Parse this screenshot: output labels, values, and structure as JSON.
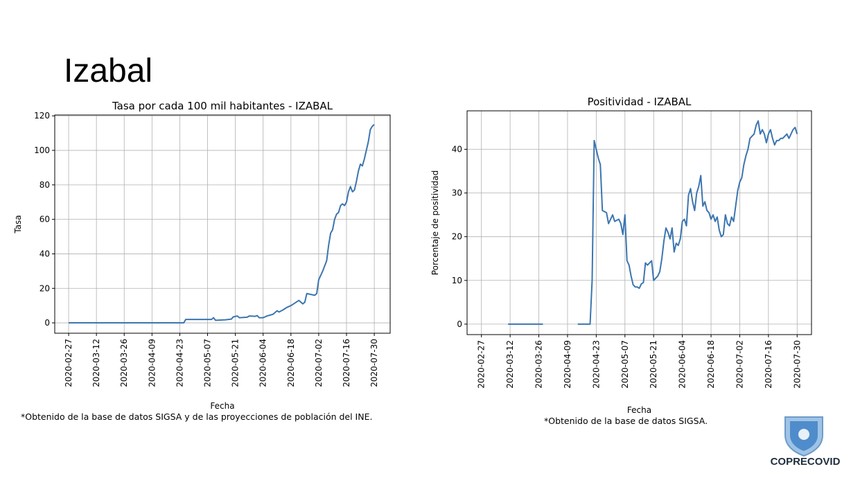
{
  "title": "Izabal",
  "logo_text": "COPRECOVID",
  "chart_data": [
    {
      "type": "line",
      "title": "Tasa por cada 100 mil habitantes - IZABAL",
      "xlabel": "Fecha",
      "ylabel": "Tasa",
      "note": "*Obtenido de la base de datos SIGSA y de las proyecciones de población del INE.",
      "color": "#3b75af",
      "grid": true,
      "xlim": [
        "2020-02-20",
        "2020-08-07"
      ],
      "ylim": [
        -6,
        120.5
      ],
      "xticks": [
        "2020-02-27",
        "2020-03-12",
        "2020-03-26",
        "2020-04-09",
        "2020-04-23",
        "2020-05-07",
        "2020-05-21",
        "2020-06-04",
        "2020-06-18",
        "2020-07-02",
        "2020-07-16",
        "2020-07-30"
      ],
      "yticks": [
        0,
        20,
        40,
        60,
        80,
        100,
        120
      ],
      "x": [
        "2020-02-27",
        "2020-04-25",
        "2020-04-26",
        "2020-05-09",
        "2020-05-10",
        "2020-05-11",
        "2020-05-16",
        "2020-05-19",
        "2020-05-20",
        "2020-05-22",
        "2020-05-23",
        "2020-05-27",
        "2020-05-28",
        "2020-05-31",
        "2020-06-01",
        "2020-06-02",
        "2020-06-04",
        "2020-06-06",
        "2020-06-09",
        "2020-06-11",
        "2020-06-12",
        "2020-06-14",
        "2020-06-16",
        "2020-06-18",
        "2020-06-20",
        "2020-06-22",
        "2020-06-24",
        "2020-06-25",
        "2020-06-26",
        "2020-06-30",
        "2020-07-01",
        "2020-07-02",
        "2020-07-04",
        "2020-07-06",
        "2020-07-07",
        "2020-07-08",
        "2020-07-09",
        "2020-07-10",
        "2020-07-11",
        "2020-07-12",
        "2020-07-13",
        "2020-07-14",
        "2020-07-15",
        "2020-07-16",
        "2020-07-17",
        "2020-07-18",
        "2020-07-19",
        "2020-07-20",
        "2020-07-21",
        "2020-07-22",
        "2020-07-23",
        "2020-07-24",
        "2020-07-25",
        "2020-07-27",
        "2020-07-28",
        "2020-07-29",
        "2020-07-30"
      ],
      "values": [
        0,
        0,
        2,
        2,
        3,
        1.5,
        1.8,
        2.2,
        3.5,
        4,
        3,
        3.3,
        4,
        3.8,
        4.2,
        3,
        3,
        4,
        5,
        7,
        6.3,
        7.5,
        9,
        10,
        11.5,
        13,
        11,
        12,
        17,
        16,
        17,
        25,
        30,
        36,
        45,
        52,
        54,
        60,
        63,
        64,
        68,
        69,
        68,
        70,
        76,
        79,
        76,
        77,
        82,
        88,
        92,
        91,
        95,
        105,
        112,
        114,
        115
      ]
    },
    {
      "type": "line",
      "title": "Positividad - IZABAL",
      "xlabel": "Fecha",
      "ylabel": "Porcentaje de positividad",
      "note": "*Obtenido de la base de datos SIGSA.",
      "color": "#3b75af",
      "grid": true,
      "xlim": [
        "2020-02-20",
        "2020-08-06"
      ],
      "ylim": [
        -2.4,
        48.8
      ],
      "xticks": [
        "2020-02-27",
        "2020-03-12",
        "2020-03-26",
        "2020-04-09",
        "2020-04-23",
        "2020-05-07",
        "2020-05-21",
        "2020-06-04",
        "2020-06-18",
        "2020-07-02",
        "2020-07-16",
        "2020-07-30"
      ],
      "yticks": [
        0,
        10,
        20,
        30,
        40
      ],
      "x": [
        "2020-03-11",
        "2020-03-20",
        "2020-03-28",
        "2020-04-05",
        "2020-04-14",
        "2020-04-20",
        "2020-04-21",
        "2020-04-22",
        "2020-04-24",
        "2020-04-25",
        "2020-04-26",
        "2020-04-28",
        "2020-04-29",
        "2020-05-01",
        "2020-05-02",
        "2020-05-04",
        "2020-05-05",
        "2020-05-06",
        "2020-05-07",
        "2020-05-08",
        "2020-05-09",
        "2020-05-10",
        "2020-05-11",
        "2020-05-12",
        "2020-05-13",
        "2020-05-14",
        "2020-05-15",
        "2020-05-16",
        "2020-05-17",
        "2020-05-18",
        "2020-05-19",
        "2020-05-20",
        "2020-05-21",
        "2020-05-22",
        "2020-05-23",
        "2020-05-24",
        "2020-05-25",
        "2020-05-26",
        "2020-05-27",
        "2020-05-28",
        "2020-05-29",
        "2020-05-30",
        "2020-05-31",
        "2020-06-01",
        "2020-06-02",
        "2020-06-03",
        "2020-06-04",
        "2020-06-05",
        "2020-06-06",
        "2020-06-07",
        "2020-06-08",
        "2020-06-09",
        "2020-06-10",
        "2020-06-11",
        "2020-06-12",
        "2020-06-13",
        "2020-06-14",
        "2020-06-15",
        "2020-06-16",
        "2020-06-17",
        "2020-06-18",
        "2020-06-19",
        "2020-06-20",
        "2020-06-21",
        "2020-06-22",
        "2020-06-23",
        "2020-06-24",
        "2020-06-25",
        "2020-06-26",
        "2020-06-27",
        "2020-06-28",
        "2020-06-29",
        "2020-06-30",
        "2020-07-01",
        "2020-07-02",
        "2020-07-03",
        "2020-07-04",
        "2020-07-05",
        "2020-07-06",
        "2020-07-07",
        "2020-07-08",
        "2020-07-09",
        "2020-07-10",
        "2020-07-11",
        "2020-07-12",
        "2020-07-13",
        "2020-07-14",
        "2020-07-15",
        "2020-07-16",
        "2020-07-17",
        "2020-07-18",
        "2020-07-19",
        "2020-07-20",
        "2020-07-21",
        "2020-07-22",
        "2020-07-23",
        "2020-07-24",
        "2020-07-25",
        "2020-07-26",
        "2020-07-27",
        "2020-07-28",
        "2020-07-29",
        "2020-07-30"
      ],
      "values": [
        0,
        0,
        0,
        null,
        0,
        0,
        10,
        42,
        38,
        36.5,
        26,
        25.5,
        23,
        25,
        23.5,
        24,
        23,
        20.5,
        25,
        14.5,
        13.5,
        11,
        9,
        8.5,
        8.5,
        8.2,
        9.2,
        9.5,
        14,
        13.5,
        14,
        14.5,
        10,
        10.5,
        11,
        12,
        15,
        19,
        22,
        21,
        19.5,
        22,
        16.5,
        18.5,
        18,
        19.5,
        23.5,
        24,
        22.5,
        29.5,
        31,
        28,
        26,
        30,
        31.5,
        34,
        27,
        28,
        26,
        25.5,
        24,
        25,
        23.5,
        24.5,
        21.5,
        20,
        20.5,
        25,
        23,
        22.5,
        24.5,
        23.5,
        27,
        30.5,
        32.5,
        33.5,
        36.5,
        38.5,
        40,
        42.5,
        43,
        43.5,
        45.5,
        46.5,
        43.5,
        44.5,
        43.5,
        41.5,
        43.5,
        44.5,
        42.5,
        41,
        42,
        42,
        42.5,
        42.5,
        43,
        43.5,
        42.5,
        43.5,
        44.5,
        45,
        43.5
      ]
    }
  ]
}
